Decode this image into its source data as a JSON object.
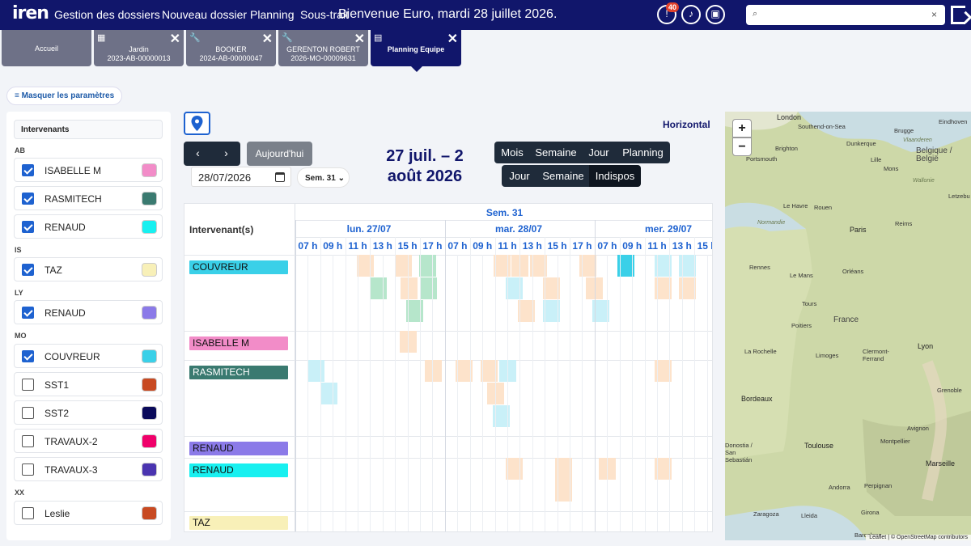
{
  "header": {
    "logo": "iren",
    "nav": [
      "Gestion des dossiers",
      "Nouveau dossier",
      "Planning",
      "Sous-traitance"
    ],
    "welcome": "Bienvenue Euro, mardi 28 juillet 2026.",
    "alert_count": "40",
    "search_placeholder": "",
    "search_clear": "×"
  },
  "tabs": [
    {
      "l1": "Accueil",
      "l2": "",
      "icon": "home",
      "closable": false
    },
    {
      "l1": "Jardin",
      "l2": "2023-AB-00000013",
      "icon": "calculator-icon",
      "closable": true
    },
    {
      "l1": "BOOKER",
      "l2": "2024-AB-00000047",
      "icon": "wrench-icon",
      "closable": true
    },
    {
      "l1": "GERENTON ROBERT",
      "l2": "2026-MO-00009631",
      "icon": "wrench-icon",
      "closable": true
    },
    {
      "l1": "Planning Equipe",
      "l2": "",
      "icon": "calendar-icon",
      "closable": true,
      "active": true
    }
  ],
  "params_button": "Masquer les paramètres",
  "left_panel": {
    "title": "Intervenants",
    "groups": [
      {
        "code": "AB",
        "people": [
          {
            "name": "ISABELLE M",
            "checked": true,
            "color": "#f28cc8"
          },
          {
            "name": "RASMITECH",
            "checked": true,
            "color": "#3a7a70"
          },
          {
            "name": "RENAUD",
            "checked": true,
            "color": "#18f0f0"
          }
        ]
      },
      {
        "code": "IS",
        "people": [
          {
            "name": "TAZ",
            "checked": true,
            "color": "#f8f0b8"
          }
        ]
      },
      {
        "code": "LY",
        "people": [
          {
            "name": "RENAUD",
            "checked": true,
            "color": "#8b7ae8"
          }
        ]
      },
      {
        "code": "MO",
        "people": [
          {
            "name": "COUVREUR",
            "checked": true,
            "color": "#3ad0e8"
          },
          {
            "name": "SST1",
            "checked": false,
            "color": "#c84a22"
          },
          {
            "name": "SST2",
            "checked": false,
            "color": "#0a0a5a"
          },
          {
            "name": "TRAVAUX-2",
            "checked": false,
            "color": "#f0006a"
          },
          {
            "name": "TRAVAUX-3",
            "checked": false,
            "color": "#4a34b0"
          }
        ]
      },
      {
        "code": "XX",
        "people": [
          {
            "name": "Leslie",
            "checked": false,
            "color": "#c84a22"
          }
        ]
      }
    ]
  },
  "toolbar": {
    "orientation": "Horizontal",
    "prev": "‹",
    "next": "›",
    "today": "Aujourd'hui",
    "date_value": "28/07/2026",
    "week_select": "Sem. 31",
    "range_line1": "27 juil. – 2",
    "range_line2": "août 2026",
    "views_row1": [
      "Mois",
      "Semaine",
      "Jour",
      "Planning"
    ],
    "views_row2": [
      "Jour",
      "Semaine",
      "Indispos"
    ],
    "active_view": "Indispos"
  },
  "calendar": {
    "week_label": "Sem. 31",
    "resource_header": "Intervenant(s)",
    "days": [
      "lun. 27/07",
      "mar. 28/07",
      "mer. 29/07"
    ],
    "hours": [
      "07 h",
      "09 h",
      "11 h",
      "13 h",
      "15 h",
      "17 h"
    ],
    "rows": [
      {
        "label": "COUVREUR",
        "color": "#3ad0e8"
      },
      {
        "label": "ISABELLE M",
        "color": "#f28cc8"
      },
      {
        "label": "RASMITECH",
        "color": "#3a7a70",
        "text_color": "#ffffff"
      },
      {
        "label": "RENAUD",
        "color": "#8b7ae8"
      },
      {
        "label": "RENAUD",
        "color": "#18f0f0"
      },
      {
        "label": "TAZ",
        "color": "#f8f0b8"
      }
    ],
    "event_colors": {
      "peach": "#fde3cb",
      "green": "#b6e6cb",
      "cyan": "#c9f0f8",
      "cyan_strong": "#3ad0e8"
    }
  },
  "map": {
    "zoom_in": "+",
    "zoom_out": "−",
    "attribution": "Leaflet | © OpenStreetMap contributors",
    "cities": [
      "London",
      "Southend-on-Sea",
      "Brugge",
      "Eindhoven",
      "Brighton",
      "Portsmouth",
      "Dunkerque",
      "Lille",
      "Vlaanderen",
      "Belgique / België",
      "Mons",
      "Wallonie",
      "Letzebu",
      "Le Havre",
      "Rouen",
      "Normandie",
      "Reims",
      "Paris",
      "Rennes",
      "Le Mans",
      "Orléans",
      "Tours",
      "Poitiers",
      "France",
      "La Rochelle",
      "Limoges",
      "Clermont-Ferrand",
      "Lyon",
      "Grenoble",
      "Bordeaux",
      "Toulouse",
      "Montpellier",
      "Marseille",
      "Avignon",
      "Andorra",
      "Perpignan",
      "Girona",
      "Zaragoza",
      "Lleida",
      "Barcelona",
      "Donostia / San Sebastián"
    ]
  }
}
